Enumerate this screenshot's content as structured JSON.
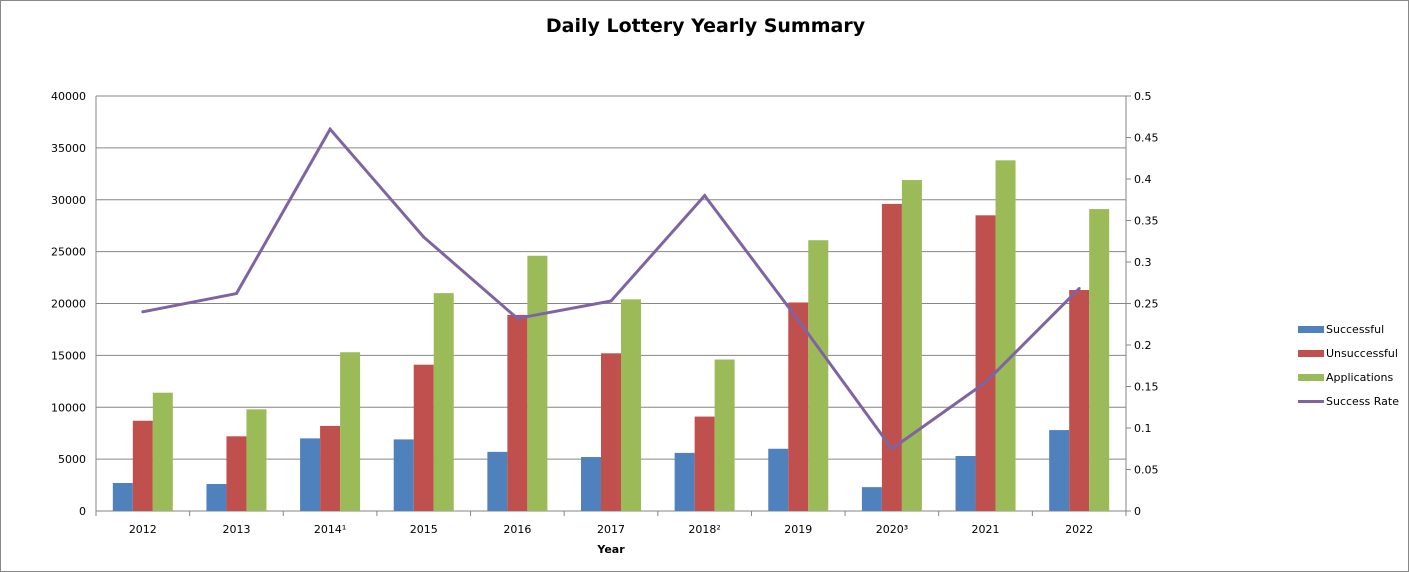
{
  "chart_data": {
    "type": "bar",
    "title": "Daily Lottery Yearly Summary",
    "xlabel": "Year",
    "ylabel": "",
    "y2label": "",
    "categories": [
      "2012",
      "2013",
      "2014¹",
      "2015",
      "2016",
      "2017",
      "2018²",
      "2019",
      "2020³",
      "2021",
      "2022"
    ],
    "ylim": [
      0,
      40000
    ],
    "y2lim": [
      0,
      0.5
    ],
    "yticks": [
      "0",
      "5000",
      "10000",
      "15000",
      "20000",
      "25000",
      "30000",
      "35000",
      "40000"
    ],
    "y2ticks": [
      "0",
      "0.05",
      "0.1",
      "0.15",
      "0.2",
      "0.25",
      "0.3",
      "0.35",
      "0.4",
      "0.45",
      "0.5"
    ],
    "grid": true,
    "legend_position": "right",
    "series": [
      {
        "name": "Successful",
        "type": "bar",
        "axis": "left",
        "color": "#4f81bd",
        "values": [
          2700,
          2600,
          7000,
          6900,
          5700,
          5200,
          5600,
          6000,
          2300,
          5300,
          7800
        ]
      },
      {
        "name": "Unsuccessful",
        "type": "bar",
        "axis": "left",
        "color": "#c0504d",
        "values": [
          8700,
          7200,
          8200,
          14100,
          18900,
          15200,
          9100,
          20100,
          29600,
          28500,
          21300
        ]
      },
      {
        "name": "Applications",
        "type": "bar",
        "axis": "left",
        "color": "#9bbb59",
        "values": [
          11400,
          9800,
          15300,
          21000,
          24600,
          20400,
          14600,
          26100,
          31900,
          33800,
          29100
        ]
      },
      {
        "name": "Success Rate",
        "type": "line",
        "axis": "right",
        "color": "#8064a2",
        "values": [
          0.24,
          0.262,
          0.46,
          0.33,
          0.232,
          0.253,
          0.38,
          0.23,
          0.075,
          0.155,
          0.268
        ]
      }
    ]
  }
}
